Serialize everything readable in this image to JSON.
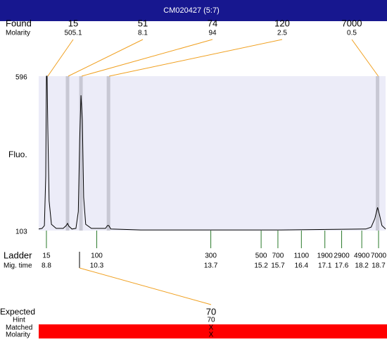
{
  "header": {
    "title": "CM020427 (5:7)"
  },
  "found": {
    "label": "Found",
    "molarity_label": "Molarity",
    "sizes": [
      15,
      51,
      74,
      120,
      7000
    ],
    "molarity": [
      505.1,
      8.1,
      94,
      2.5,
      0.5
    ],
    "times": [
      8.82,
      9.43,
      9.83,
      10.65,
      18.67
    ]
  },
  "chart_data": {
    "type": "line",
    "y_label": "Fluo.",
    "xlim": [
      8.57,
      18.91
    ],
    "ylim": [
      103,
      596
    ],
    "yticks": [
      596,
      103
    ],
    "series": [
      {
        "name": "trace",
        "color": "#000000",
        "x": [
          8.57,
          8.67,
          8.74,
          8.78,
          8.8,
          8.82,
          8.84,
          8.88,
          8.95,
          9.09,
          9.3,
          9.39,
          9.43,
          9.47,
          9.56,
          9.68,
          9.75,
          9.79,
          9.83,
          9.87,
          9.91,
          9.97,
          10.14,
          10.56,
          10.62,
          10.66,
          10.72,
          11.61,
          13.71,
          15.8,
          18.32,
          18.48,
          18.59,
          18.67,
          18.73,
          18.8,
          18.91
        ],
        "values": [
          108,
          110,
          119,
          276,
          596,
          596,
          434,
          198,
          123,
          110,
          110,
          119,
          126,
          117,
          108,
          110,
          164,
          389,
          535,
          456,
          209,
          123,
          110,
          110,
          119,
          119,
          108,
          105,
          105,
          105,
          108,
          114,
          141,
          177,
          153,
          119,
          108
        ]
      }
    ]
  },
  "ladder": {
    "label": "Ladder",
    "time_label": "Mig. time",
    "sizes": [
      15,
      100,
      300,
      500,
      700,
      1100,
      1900,
      2900,
      4900,
      7000
    ],
    "times": [
      8.8,
      10.3,
      13.7,
      15.2,
      15.7,
      16.4,
      17.1,
      17.6,
      18.2,
      18.7
    ]
  },
  "expected": {
    "label": "Expected",
    "value": 70,
    "hint_label": "Hint",
    "hint": 70,
    "matched_label": "Matched",
    "matched": "X",
    "molarity_label": "Molarity",
    "molarity": "X"
  }
}
